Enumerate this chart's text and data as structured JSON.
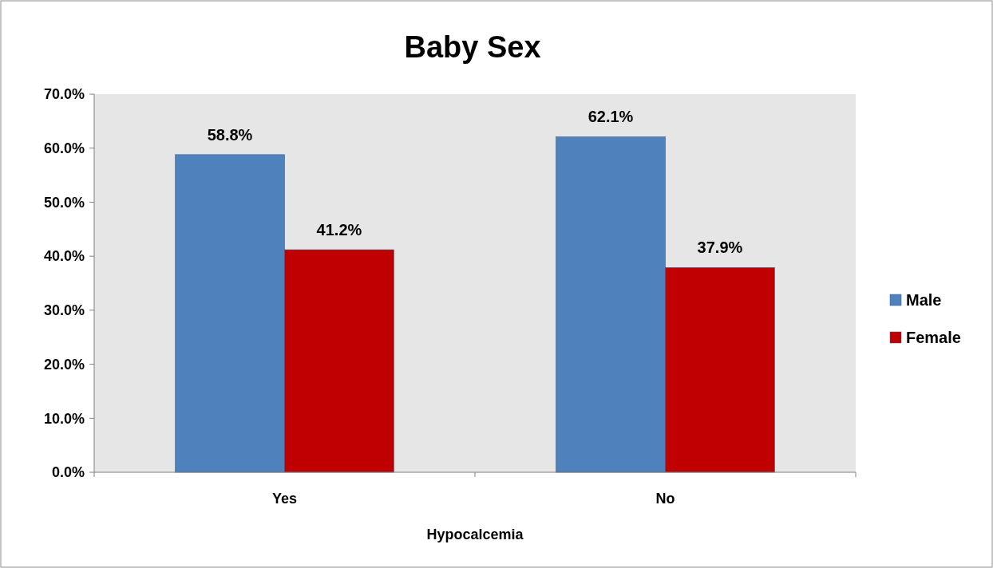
{
  "chart_data": {
    "type": "bar",
    "title": "Baby Sex",
    "xlabel": "Hypocalcemia",
    "categories": [
      "Yes",
      "No"
    ],
    "series": [
      {
        "name": "Male",
        "color": "#4f81bd",
        "values": [
          58.8,
          62.1
        ],
        "value_labels": [
          "58.8%",
          "62.1%"
        ]
      },
      {
        "name": "Female",
        "color": "#c00000",
        "values": [
          41.2,
          37.9
        ],
        "value_labels": [
          "41.2%",
          "37.9%"
        ]
      }
    ],
    "ylim": [
      0,
      70
    ],
    "yticks": [
      {
        "value": 0,
        "label": "0.0%"
      },
      {
        "value": 10,
        "label": "10.0%"
      },
      {
        "value": 20,
        "label": "20.0%"
      },
      {
        "value": 30,
        "label": "30.0%"
      },
      {
        "value": 40,
        "label": "40.0%"
      },
      {
        "value": 50,
        "label": "50.0%"
      },
      {
        "value": 60,
        "label": "60.0%"
      },
      {
        "value": 70,
        "label": "70.0%"
      }
    ],
    "grid": false,
    "legend": "right"
  }
}
